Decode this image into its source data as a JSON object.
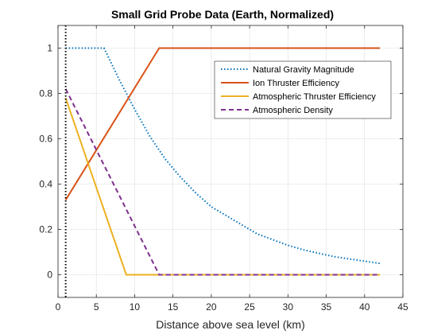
{
  "chart_data": {
    "type": "line",
    "title": "Small Grid Probe Data (Earth, Normalized)",
    "xlabel": "Distance above sea level (km)",
    "ylabel": "",
    "xlim": [
      0,
      45
    ],
    "ylim": [
      -0.1,
      1.1
    ],
    "xticks": [
      0,
      5,
      10,
      15,
      20,
      25,
      30,
      35,
      40,
      45
    ],
    "yticks": [
      0,
      0.2,
      0.4,
      0.6,
      0.8,
      1
    ],
    "grid": true,
    "legend_position": "top-right",
    "vertical_reference_line": {
      "x": 1,
      "style": "dotted",
      "color": "#000000"
    },
    "series": [
      {
        "name": "Natural Gravity Magnitude",
        "color": "#0072BD",
        "style": "dotted",
        "x": [
          1,
          6,
          8,
          10,
          12,
          14,
          16,
          18,
          20,
          22,
          24,
          26,
          28,
          30,
          32,
          34,
          36,
          38,
          40,
          42
        ],
        "y": [
          1,
          1,
          0.86,
          0.73,
          0.61,
          0.51,
          0.43,
          0.36,
          0.3,
          0.26,
          0.22,
          0.18,
          0.155,
          0.13,
          0.11,
          0.095,
          0.08,
          0.07,
          0.06,
          0.05
        ]
      },
      {
        "name": "Ion Thruster Efficiency",
        "color": "#D95319",
        "style": "solid",
        "x": [
          1,
          13.2,
          42
        ],
        "y": [
          0.33,
          1,
          1
        ]
      },
      {
        "name": "Atmospheric Thruster Efficiency",
        "color": "#EDB120",
        "style": "solid",
        "x": [
          1,
          8.9,
          42
        ],
        "y": [
          0.78,
          0,
          0
        ]
      },
      {
        "name": "Atmospheric Density",
        "color": "#7E2F8E",
        "style": "dashed",
        "x": [
          1,
          13.2,
          42
        ],
        "y": [
          0.82,
          0,
          0
        ]
      }
    ]
  }
}
